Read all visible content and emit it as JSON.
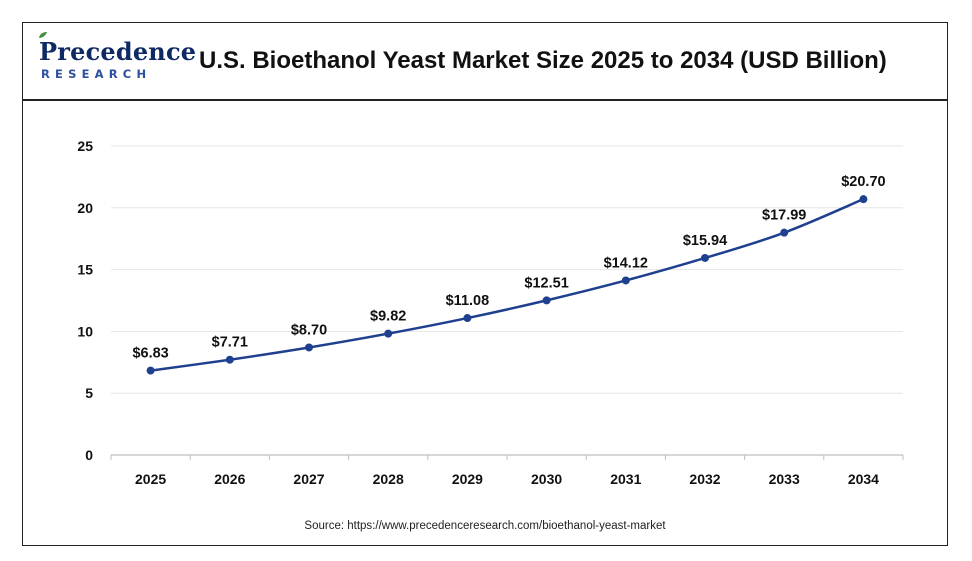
{
  "header": {
    "logo_top": "recedence",
    "logo_p": "P",
    "logo_bottom": "RESEARCH",
    "title": "U.S. Bioethanol Yeast Market Size 2025 to 2034 (USD Billion)"
  },
  "footer": {
    "source": "Source: https://www.precedenceresearch.com/bioethanol-yeast-market"
  },
  "chart_data": {
    "type": "line",
    "title": "U.S. Bioethanol Yeast Market Size 2025 to 2034 (USD Billion)",
    "xlabel": "",
    "ylabel": "",
    "categories": [
      "2025",
      "2026",
      "2027",
      "2028",
      "2029",
      "2030",
      "2031",
      "2032",
      "2033",
      "2034"
    ],
    "values": [
      6.83,
      7.71,
      8.7,
      9.82,
      11.08,
      12.51,
      14.12,
      15.94,
      17.99,
      20.7
    ],
    "data_labels": [
      "$6.83",
      "$7.71",
      "$8.70",
      "$9.82",
      "$11.08",
      "$12.51",
      "$14.12",
      "$15.94",
      "$17.99",
      "$20.70"
    ],
    "ylim": [
      0,
      25
    ],
    "yticks": [
      0,
      5,
      10,
      15,
      20,
      25
    ],
    "grid": true,
    "legend": "none",
    "colors": {
      "line": "#1f3f8f",
      "marker": "#1f3f8f",
      "grid": "#e6e6e6"
    }
  }
}
